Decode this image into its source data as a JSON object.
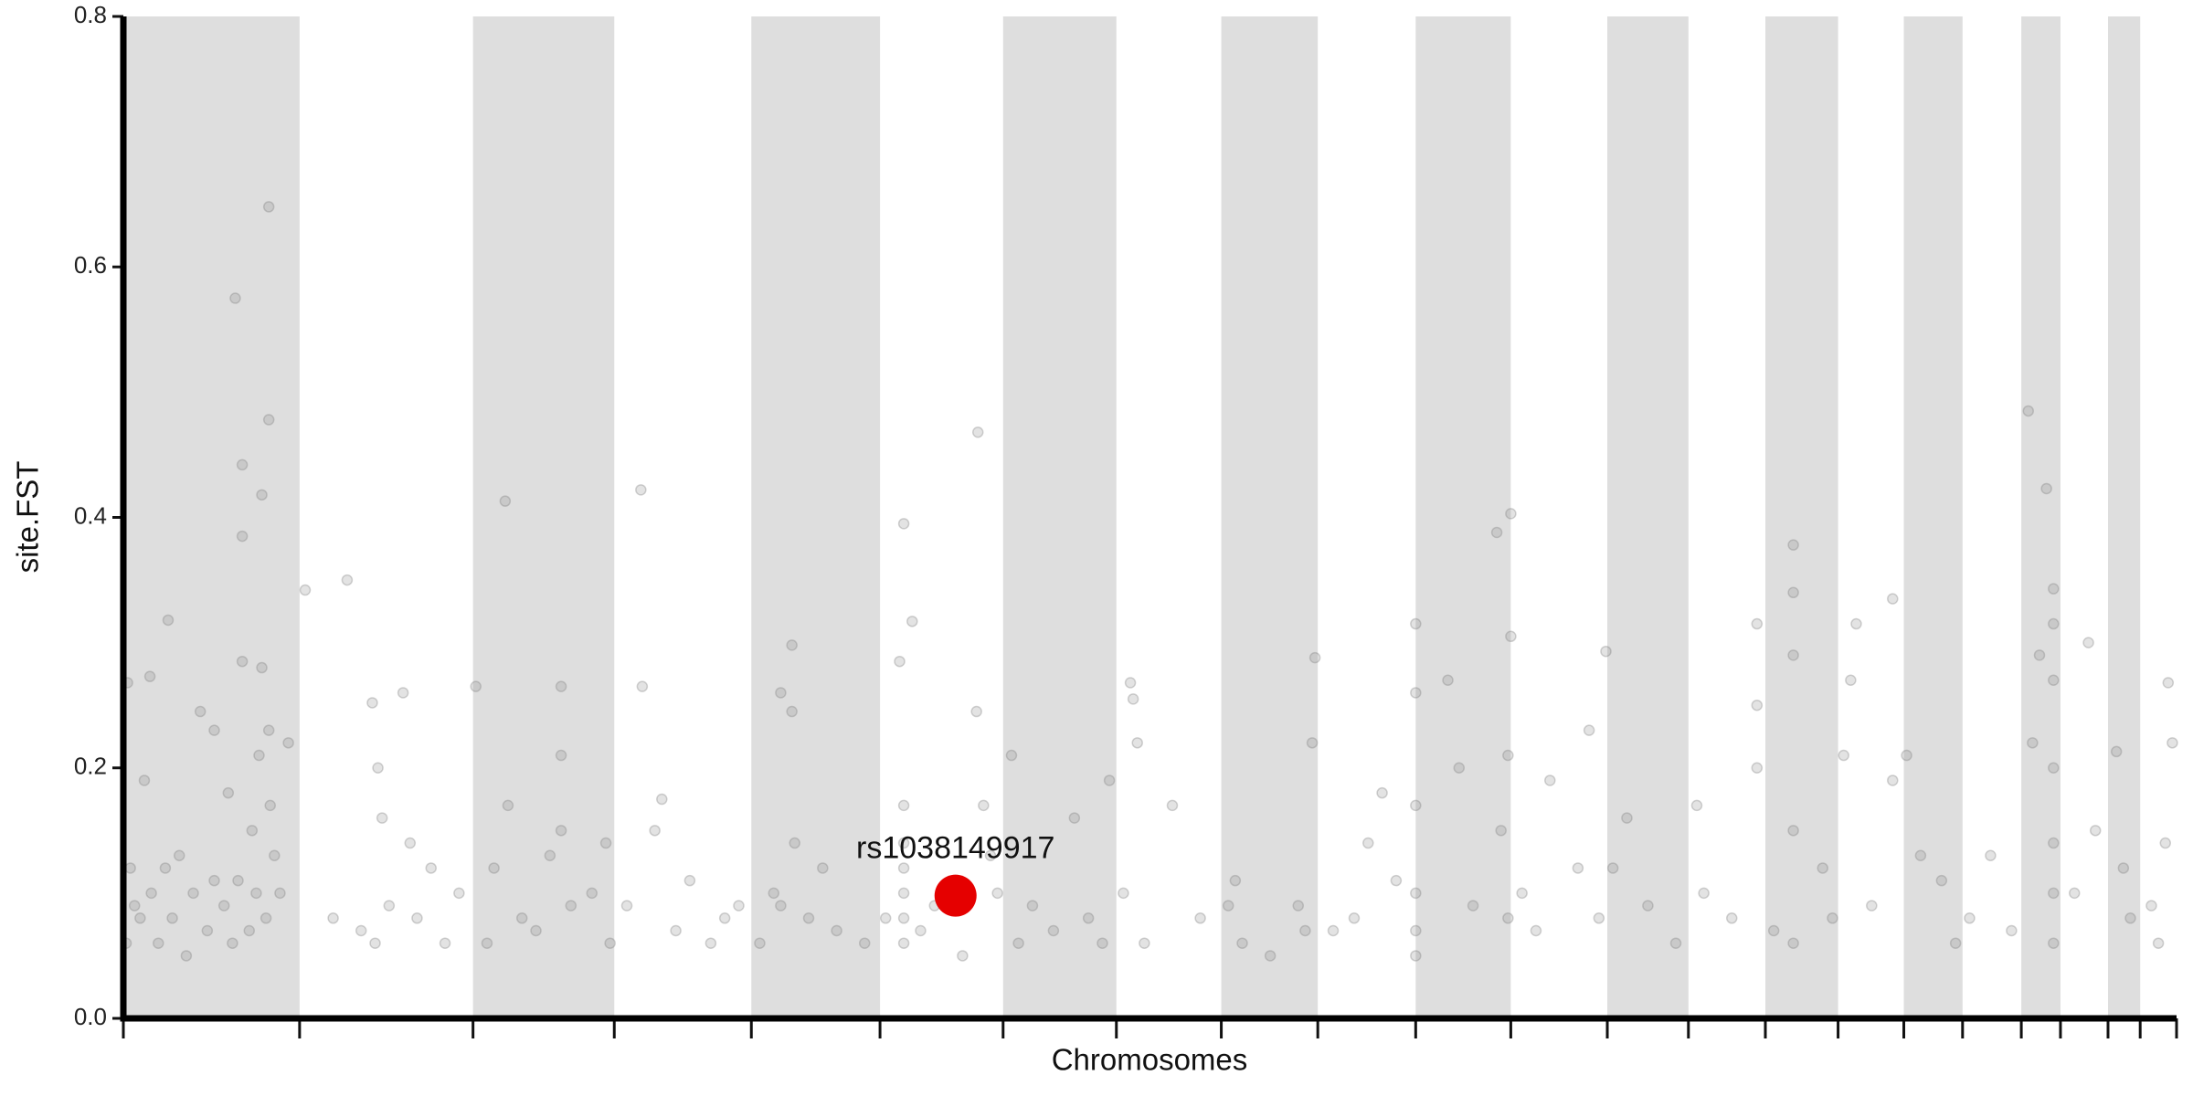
{
  "chart_data": {
    "type": "scatter",
    "y_label": "site.FST",
    "x_label": "Chromosomes",
    "xlim": [
      0,
      1468
    ],
    "ylim": [
      0,
      0.8
    ],
    "yticks": [
      {
        "value": 0,
        "label": "0.0"
      },
      0.2,
      0.4,
      0.6,
      0.8
    ],
    "chromosome_bounds": [
      0,
      126,
      250,
      351,
      449,
      541,
      629,
      710,
      785,
      854,
      924,
      992,
      1061,
      1119,
      1174,
      1226,
      1273,
      1315,
      1357,
      1385,
      1419,
      1442,
      1468
    ],
    "shade_color": "#dedede",
    "series": [
      {
        "color": "#808080",
        "x": [
          2,
          3,
          5,
          8,
          12,
          15,
          19,
          20,
          25,
          30,
          32,
          35,
          40,
          45,
          50,
          55,
          60,
          65,
          65,
          72,
          75,
          78,
          80,
          82,
          85,
          85,
          85,
          90,
          92,
          95,
          97,
          99,
          99,
          102,
          104,
          104,
          104,
          105,
          108,
          112,
          118,
          130,
          160,
          150,
          170,
          178,
          180,
          182,
          185,
          190,
          200,
          205,
          210,
          220,
          230,
          240,
          252,
          260,
          265,
          273,
          275,
          285,
          295,
          305,
          313,
          313,
          313,
          320,
          335,
          345,
          348,
          360,
          370,
          371,
          380,
          385,
          395,
          405,
          420,
          430,
          440,
          455,
          465,
          470,
          478,
          478,
          470,
          480,
          490,
          500,
          510,
          530,
          545,
          555,
          558,
          558,
          558,
          558,
          558,
          558,
          558,
          564,
          570,
          580,
          600,
          610,
          611,
          615,
          620,
          625,
          635,
          640,
          650,
          665,
          680,
          690,
          700,
          705,
          715,
          720,
          722,
          725,
          730,
          750,
          770,
          790,
          795,
          800,
          820,
          840,
          845,
          852,
          850,
          865,
          880,
          890,
          900,
          910,
          924,
          924,
          924,
          924,
          924,
          924,
          947,
          955,
          965,
          982,
          985,
          990,
          992,
          992,
          990,
          1000,
          1010,
          1020,
          1040,
          1048,
          1055,
          1060,
          1065,
          1075,
          1090,
          1110,
          1125,
          1130,
          1150,
          1168,
          1168,
          1168,
          1180,
          1194,
          1194,
          1194,
          1194,
          1194,
          1215,
          1222,
          1239,
          1235,
          1230,
          1250,
          1265,
          1275,
          1285,
          1265,
          1300,
          1310,
          1320,
          1335,
          1350,
          1362,
          1375,
          1380,
          1380,
          1380,
          1380,
          1380,
          1380,
          1380,
          1370,
          1365,
          1395,
          1405,
          1410,
          1425,
          1430,
          1435,
          1450,
          1462,
          1465,
          1460,
          1455
        ],
        "values": [
          0.06,
          0.268,
          0.12,
          0.09,
          0.08,
          0.19,
          0.273,
          0.1,
          0.06,
          0.12,
          0.318,
          0.08,
          0.13,
          0.05,
          0.1,
          0.245,
          0.07,
          0.23,
          0.11,
          0.09,
          0.18,
          0.06,
          0.575,
          0.11,
          0.442,
          0.385,
          0.285,
          0.07,
          0.15,
          0.1,
          0.21,
          0.418,
          0.28,
          0.08,
          0.648,
          0.478,
          0.23,
          0.17,
          0.13,
          0.1,
          0.22,
          0.342,
          0.35,
          0.08,
          0.07,
          0.252,
          0.06,
          0.2,
          0.16,
          0.09,
          0.26,
          0.14,
          0.08,
          0.12,
          0.06,
          0.1,
          0.265,
          0.06,
          0.12,
          0.413,
          0.17,
          0.08,
          0.07,
          0.13,
          0.265,
          0.21,
          0.15,
          0.09,
          0.1,
          0.14,
          0.06,
          0.09,
          0.422,
          0.265,
          0.15,
          0.175,
          0.07,
          0.11,
          0.06,
          0.08,
          0.09,
          0.06,
          0.1,
          0.26,
          0.298,
          0.245,
          0.09,
          0.14,
          0.08,
          0.12,
          0.07,
          0.06,
          0.08,
          0.285,
          0.395,
          0.17,
          0.14,
          0.12,
          0.1,
          0.08,
          0.06,
          0.317,
          0.07,
          0.09,
          0.05,
          0.245,
          0.468,
          0.17,
          0.13,
          0.1,
          0.21,
          0.06,
          0.09,
          0.07,
          0.16,
          0.08,
          0.06,
          0.19,
          0.1,
          0.268,
          0.255,
          0.22,
          0.06,
          0.17,
          0.08,
          0.09,
          0.11,
          0.06,
          0.05,
          0.09,
          0.07,
          0.288,
          0.22,
          0.07,
          0.08,
          0.14,
          0.18,
          0.11,
          0.315,
          0.26,
          0.17,
          0.1,
          0.07,
          0.05,
          0.27,
          0.2,
          0.09,
          0.388,
          0.15,
          0.08,
          0.403,
          0.305,
          0.21,
          0.1,
          0.07,
          0.19,
          0.12,
          0.23,
          0.08,
          0.293,
          0.12,
          0.16,
          0.09,
          0.06,
          0.17,
          0.1,
          0.08,
          0.315,
          0.25,
          0.2,
          0.07,
          0.378,
          0.34,
          0.29,
          0.15,
          0.06,
          0.12,
          0.08,
          0.315,
          0.27,
          0.21,
          0.09,
          0.19,
          0.21,
          0.13,
          0.335,
          0.11,
          0.06,
          0.08,
          0.13,
          0.07,
          0.485,
          0.423,
          0.343,
          0.315,
          0.27,
          0.2,
          0.14,
          0.1,
          0.06,
          0.29,
          0.22,
          0.1,
          0.3,
          0.15,
          0.213,
          0.12,
          0.08,
          0.09,
          0.268,
          0.22,
          0.14,
          0.06
        ]
      }
    ],
    "highlight": {
      "label": "rs1038149917",
      "x": 595,
      "y": 0.098,
      "color": "#e50000"
    }
  }
}
